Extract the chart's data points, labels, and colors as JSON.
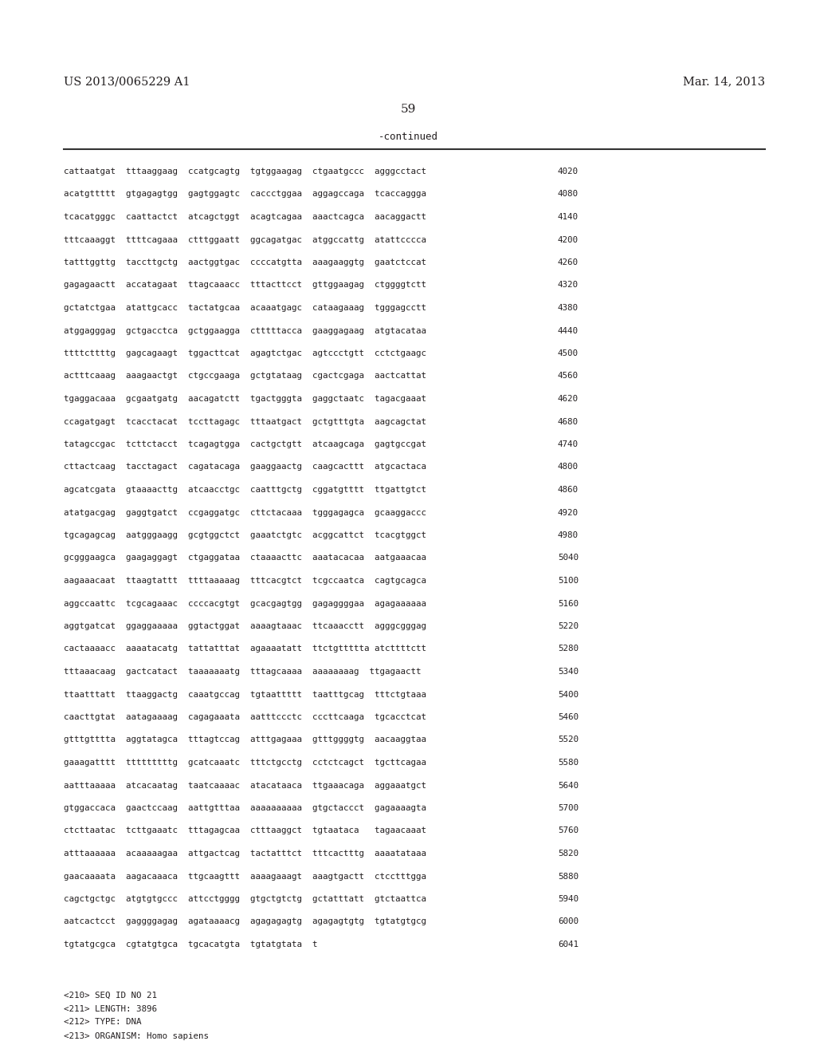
{
  "header_left": "US 2013/0065229 A1",
  "header_right": "Mar. 14, 2013",
  "page_number": "59",
  "continued_text": "-continued",
  "background_color": "#ffffff",
  "text_color": "#231f20",
  "sequence_lines": [
    [
      "cattaatgat  tttaaggaag  ccatgcagtg  tgtggaagag  ctgaatgccc  agggcctact",
      "4020"
    ],
    [
      "acatgttttt  gtgagagtgg  gagtggagtc  caccctggaa  aggagccaga  tcaccaggga",
      "4080"
    ],
    [
      "tcacatgggc  caattactct  atcagctggt  acagtcagaa  aaactcagca  aacaggactt",
      "4140"
    ],
    [
      "tttcaaaggt  ttttcagaaa  ctttggaatt  ggcagatgac  atggccattg  atattcccca",
      "4200"
    ],
    [
      "tatttggttg  taccttgctg  aactggtgac  ccccatgtta  aaagaaggtg  gaatctccat",
      "4260"
    ],
    [
      "gagagaactt  accatagaat  ttagcaaacc  tttacttcct  gttggaagag  ctggggtctt",
      "4320"
    ],
    [
      "gctatctgaa  atattgcacc  tactatgcaa  acaaatgagc  cataagaaag  tgggagcctt",
      "4380"
    ],
    [
      "atggagggag  gctgacctca  gctggaagga  ctttttacca  gaaggagaag  atgtacataa",
      "4440"
    ],
    [
      "ttttcttttg  gagcagaagt  tggacttcat  agagtctgac  agtccctgtt  cctctgaagc",
      "4500"
    ],
    [
      "actttcaaag  aaagaactgt  ctgccgaaga  gctgtataag  cgactcgaga  aactcattat",
      "4560"
    ],
    [
      "tgaggacaaa  gcgaatgatg  aacagatctt  tgactgggta  gaggctaatc  tagacgaaat",
      "4620"
    ],
    [
      "ccagatgagt  tcacctacat  tccttagagc  tttaatgact  gctgtttgta  aagcagctat",
      "4680"
    ],
    [
      "tatagccgac  tcttctacct  tcagagtgga  cactgctgtt  atcaagcaga  gagtgccgat",
      "4740"
    ],
    [
      "cttactcaag  tacctagact  cagatacaga  gaaggaactg  caagcacttt  atgcactaca",
      "4800"
    ],
    [
      "agcatcgata  gtaaaacttg  atcaacctgc  caatttgctg  cggatgtttt  ttgattgtct",
      "4860"
    ],
    [
      "atatgacgag  gaggtgatct  ccgaggatgc  cttctacaaa  tgggagagca  gcaaggaccc",
      "4920"
    ],
    [
      "tgcagagcag  aatgggaagg  gcgtggctct  gaaatctgtc  acggcattct  tcacgtggct",
      "4980"
    ],
    [
      "gcgggaagca  gaagaggagt  ctgaggataa  ctaaaacttc  aaatacacaa  aatgaaacaa",
      "5040"
    ],
    [
      "aagaaacaat  ttaagtattt  ttttaaaaag  tttcacgtct  tcgccaatca  cagtgcagca",
      "5100"
    ],
    [
      "aggccaattc  tcgcagaaac  ccccacgtgt  gcacgagtgg  gagaggggaa  agagaaaaaa",
      "5160"
    ],
    [
      "aggtgatcat  ggaggaaaaa  ggtactggat  aaaagtaaac  ttcaaacctt  agggcgggag",
      "5220"
    ],
    [
      "cactaaaacc  aaaatacatg  tattatttat  agaaaatatt  ttctgttttta atcttttctt",
      "5280"
    ],
    [
      "tttaaacaag  gactcatact  taaaaaaatg  tttagcaaaa  aaaaaaaag  ttgagaactt",
      "5340"
    ],
    [
      "ttaatttatt  ttaaggactg  caaatgccag  tgtaattttt  taatttgcag  tttctgtaaa",
      "5400"
    ],
    [
      "caacttgtat  aatagaaaag  cagagaaata  aatttccctc  cccttcaaga  tgcacctcat",
      "5460"
    ],
    [
      "gtttgtttta  aggtatagca  tttagtccag  atttgagaaa  gtttggggtg  aacaaggtaa",
      "5520"
    ],
    [
      "gaaagatttt  tttttttttg  gcatcaaatc  tttctgcctg  cctctcagct  tgcttcagaa",
      "5580"
    ],
    [
      "aatttaaaaa  atcacaatag  taatcaaaac  atacataaca  ttgaaacaga  aggaaatgct",
      "5640"
    ],
    [
      "gtggaccaca  gaactccaag  aattgtttaa  aaaaaaaaaa  gtgctaccct  gagaaaagta",
      "5700"
    ],
    [
      "ctcttaatac  tcttgaaatc  tttagagcaa  ctttaaggct  tgtaataca   tagaacaaat",
      "5760"
    ],
    [
      "atttaaaaaa  acaaaaagaa  attgactcag  tactatttct  tttcactttg  aaaatataaa",
      "5820"
    ],
    [
      "gaacaaaata  aagacaaaca  ttgcaagttt  aaaagaaagt  aaagtgactt  ctcctttgga",
      "5880"
    ],
    [
      "cagctgctgc  atgtgtgccc  attcctgggg  gtgctgtctg  gctatttatt  gtctaattca",
      "5940"
    ],
    [
      "aatcactcct  gaggggagag  agataaaacg  agagagagtg  agagagtgtg  tgtatgtgcg",
      "6000"
    ],
    [
      "tgtatgcgca  cgtatgtgca  tgcacatgta  tgtatgtata  t",
      "6041"
    ]
  ],
  "footer_lines": [
    "<210> SEQ ID NO 21",
    "<211> LENGTH: 3896",
    "<212> TYPE: DNA",
    "<213> ORGANISM: Homo sapiens"
  ],
  "mono_fontsize": 7.8,
  "header_fontsize": 10.5,
  "page_num_fontsize": 11
}
